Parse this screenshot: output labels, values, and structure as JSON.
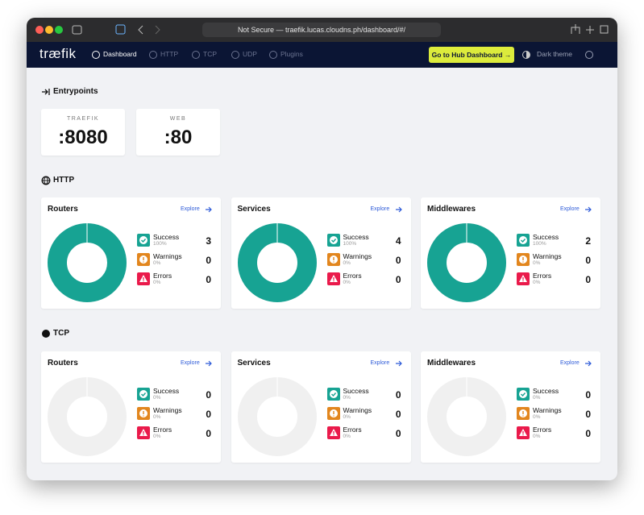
{
  "browser": {
    "address": "Not Secure — traefik.lucas.cloudns.ph/dashboard/#/"
  },
  "nav": {
    "logo": "træfik",
    "items": [
      "Dashboard",
      "HTTP",
      "TCP",
      "UDP",
      "Plugins"
    ],
    "hub_button": "Go to Hub Dashboard →",
    "theme": "Dark theme"
  },
  "entrypoints": {
    "title": "Entrypoints",
    "items": [
      {
        "name": "TRAEFIK",
        "port": ":8080"
      },
      {
        "name": "WEB",
        "port": ":80"
      }
    ]
  },
  "sections": [
    {
      "title": "HTTP",
      "cards": [
        {
          "title": "Routers",
          "explore": "Explore",
          "stats": [
            {
              "label": "Success",
              "percent": "100%",
              "count": 3
            },
            {
              "label": "Warnings",
              "percent": "0%",
              "count": 0
            },
            {
              "label": "Errors",
              "percent": "0%",
              "count": 0
            }
          ]
        },
        {
          "title": "Services",
          "explore": "Explore",
          "stats": [
            {
              "label": "Success",
              "percent": "100%",
              "count": 4
            },
            {
              "label": "Warnings",
              "percent": "0%",
              "count": 0
            },
            {
              "label": "Errors",
              "percent": "0%",
              "count": 0
            }
          ]
        },
        {
          "title": "Middlewares",
          "explore": "Explore",
          "stats": [
            {
              "label": "Success",
              "percent": "100%",
              "count": 2
            },
            {
              "label": "Warnings",
              "percent": "0%",
              "count": 0
            },
            {
              "label": "Errors",
              "percent": "0%",
              "count": 0
            }
          ]
        }
      ]
    },
    {
      "title": "TCP",
      "cards": [
        {
          "title": "Routers",
          "explore": "Explore",
          "stats": [
            {
              "label": "Success",
              "percent": "0%",
              "count": 0
            },
            {
              "label": "Warnings",
              "percent": "0%",
              "count": 0
            },
            {
              "label": "Errors",
              "percent": "0%",
              "count": 0
            }
          ]
        },
        {
          "title": "Services",
          "explore": "Explore",
          "stats": [
            {
              "label": "Success",
              "percent": "0%",
              "count": 0
            },
            {
              "label": "Warnings",
              "percent": "0%",
              "count": 0
            },
            {
              "label": "Errors",
              "percent": "0%",
              "count": 0
            }
          ]
        },
        {
          "title": "Middlewares",
          "explore": "Explore",
          "stats": [
            {
              "label": "Success",
              "percent": "0%",
              "count": 0
            },
            {
              "label": "Warnings",
              "percent": "0%",
              "count": 0
            },
            {
              "label": "Errors",
              "percent": "0%",
              "count": 0
            }
          ]
        }
      ]
    }
  ]
}
